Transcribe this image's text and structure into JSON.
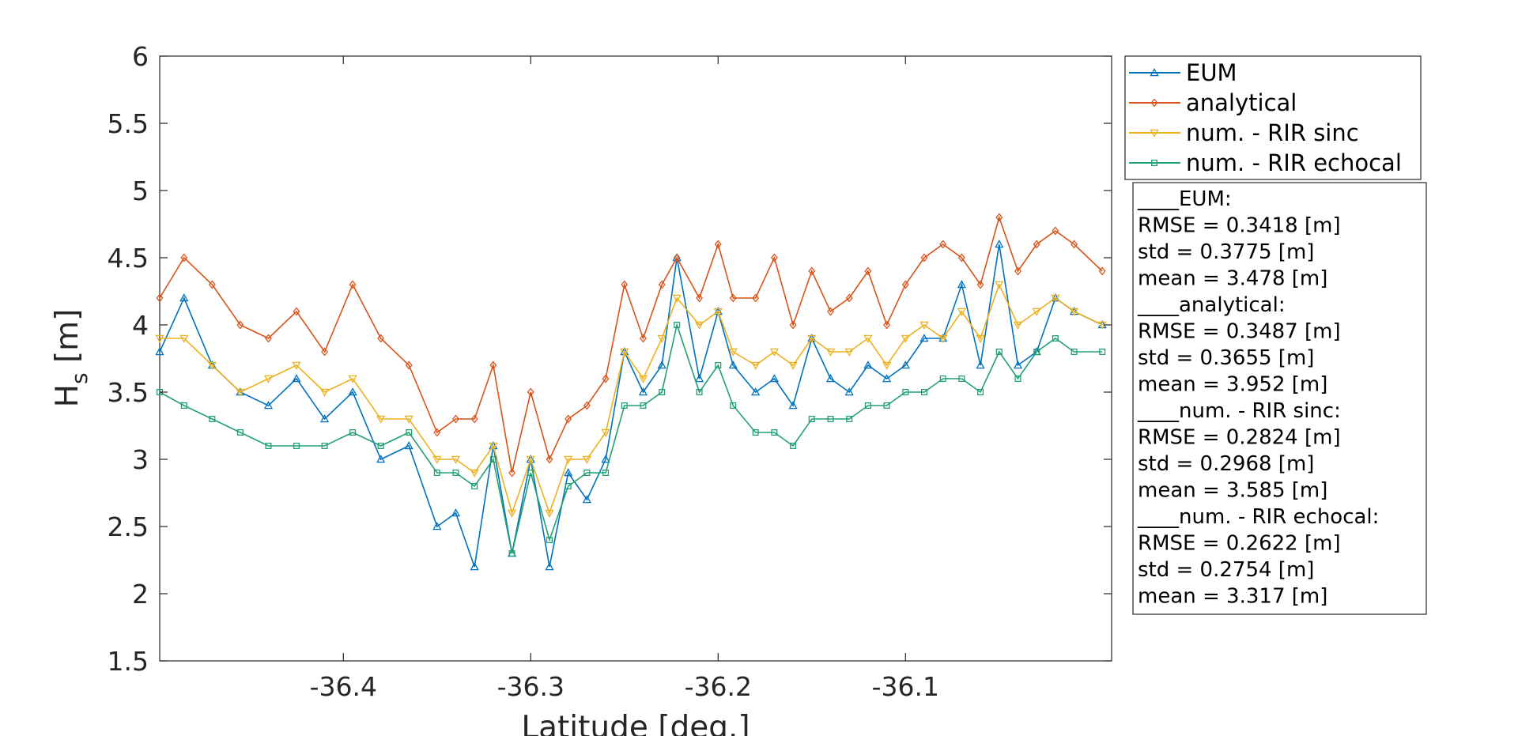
{
  "chart_data": {
    "type": "line",
    "xlabel": "Latitude [deg.]",
    "ylabel_main": "H",
    "ylabel_sub": "s",
    "ylabel_unit": " [m]",
    "xlim": [
      -36.498,
      -35.99
    ],
    "ylim": [
      1.5,
      6
    ],
    "xticks": [
      -36.4,
      -36.3,
      -36.2,
      -36.1
    ],
    "xtick_labels": [
      "-36.4",
      "-36.3",
      "-36.2",
      "-36.1"
    ],
    "yticks": [
      1.5,
      2,
      2.5,
      3,
      3.5,
      4,
      4.5,
      5,
      5.5,
      6
    ],
    "ytick_labels": [
      "1.5",
      "2",
      "2.5",
      "3",
      "3.5",
      "4",
      "4.5",
      "5",
      "5.5",
      "6"
    ],
    "grid": false,
    "legend_position": "outside-top-right",
    "x": [
      -36.498,
      -36.485,
      -36.47,
      -36.455,
      -36.44,
      -36.425,
      -36.41,
      -36.395,
      -36.38,
      -36.365,
      -36.35,
      -36.34,
      -36.33,
      -36.32,
      -36.31,
      -36.3,
      -36.29,
      -36.28,
      -36.27,
      -36.26,
      -36.25,
      -36.24,
      -36.23,
      -36.222,
      -36.21,
      -36.2,
      -36.192,
      -36.18,
      -36.17,
      -36.16,
      -36.15,
      -36.14,
      -36.13,
      -36.12,
      -36.11,
      -36.1,
      -36.09,
      -36.08,
      -36.07,
      -36.06,
      -36.05,
      -36.04,
      -36.03,
      -36.02,
      -36.01,
      -35.995
    ],
    "series": [
      {
        "name": "EUM",
        "color": "#0072BD",
        "marker": "triangle-up",
        "values": [
          3.8,
          4.2,
          3.7,
          3.5,
          3.4,
          3.6,
          3.3,
          3.5,
          3.0,
          3.1,
          2.5,
          2.6,
          2.2,
          3.1,
          2.3,
          3.0,
          2.2,
          2.9,
          2.7,
          3.0,
          3.8,
          3.5,
          3.7,
          4.5,
          3.6,
          4.1,
          3.7,
          3.5,
          3.6,
          3.4,
          3.9,
          3.6,
          3.5,
          3.7,
          3.6,
          3.7,
          3.9,
          3.9,
          4.3,
          3.7,
          4.6,
          3.7,
          3.8,
          4.2,
          4.1,
          4.0
        ]
      },
      {
        "name": "analytical",
        "color": "#D95319",
        "marker": "diamond",
        "values": [
          4.2,
          4.5,
          4.3,
          4.0,
          3.9,
          4.1,
          3.8,
          4.3,
          3.9,
          3.7,
          3.2,
          3.3,
          3.3,
          3.7,
          2.9,
          3.5,
          3.0,
          3.3,
          3.4,
          3.6,
          4.3,
          3.9,
          4.3,
          4.5,
          4.2,
          4.6,
          4.2,
          4.2,
          4.5,
          4.0,
          4.4,
          4.1,
          4.2,
          4.4,
          4.0,
          4.3,
          4.5,
          4.6,
          4.5,
          4.3,
          4.8,
          4.4,
          4.6,
          4.7,
          4.6,
          4.4
        ]
      },
      {
        "name": "num. - RIR sinc",
        "color": "#EDB120",
        "marker": "triangle-down",
        "values": [
          3.9,
          3.9,
          3.7,
          3.5,
          3.6,
          3.7,
          3.5,
          3.6,
          3.3,
          3.3,
          3.0,
          3.0,
          2.9,
          3.1,
          2.6,
          3.0,
          2.6,
          3.0,
          3.0,
          3.2,
          3.8,
          3.6,
          3.9,
          4.2,
          4.0,
          4.1,
          3.8,
          3.7,
          3.8,
          3.7,
          3.9,
          3.8,
          3.8,
          3.9,
          3.7,
          3.9,
          4.0,
          3.9,
          4.1,
          3.9,
          4.3,
          4.0,
          4.1,
          4.2,
          4.1,
          4.0
        ]
      },
      {
        "name": "num. - RIR echocal",
        "color": "#23A073",
        "marker": "square",
        "values": [
          3.5,
          3.4,
          3.3,
          3.2,
          3.1,
          3.1,
          3.1,
          3.2,
          3.1,
          3.2,
          2.9,
          2.9,
          2.8,
          3.0,
          2.3,
          2.9,
          2.4,
          2.8,
          2.9,
          2.9,
          3.4,
          3.4,
          3.5,
          4.0,
          3.5,
          3.7,
          3.4,
          3.2,
          3.2,
          3.1,
          3.3,
          3.3,
          3.3,
          3.4,
          3.4,
          3.5,
          3.5,
          3.6,
          3.6,
          3.5,
          3.8,
          3.6,
          3.8,
          3.9,
          3.8,
          3.8
        ]
      }
    ]
  },
  "stats": [
    {
      "header": "____EUM:",
      "lines": [
        "RMSE = 0.3418 [m]",
        "std = 0.3775 [m]",
        "mean = 3.478 [m]"
      ]
    },
    {
      "header": "____analytical:",
      "lines": [
        "RMSE = 0.3487 [m]",
        "std = 0.3655 [m]",
        "mean = 3.952 [m]"
      ]
    },
    {
      "header": "____num. - RIR sinc:",
      "lines": [
        "RMSE = 0.2824 [m]",
        "std = 0.2968 [m]",
        "mean = 3.585 [m]"
      ]
    },
    {
      "header": "____num. - RIR echocal:",
      "lines": [
        "RMSE = 0.2622 [m]",
        "std = 0.2754 [m]",
        "mean = 3.317 [m]"
      ]
    }
  ]
}
